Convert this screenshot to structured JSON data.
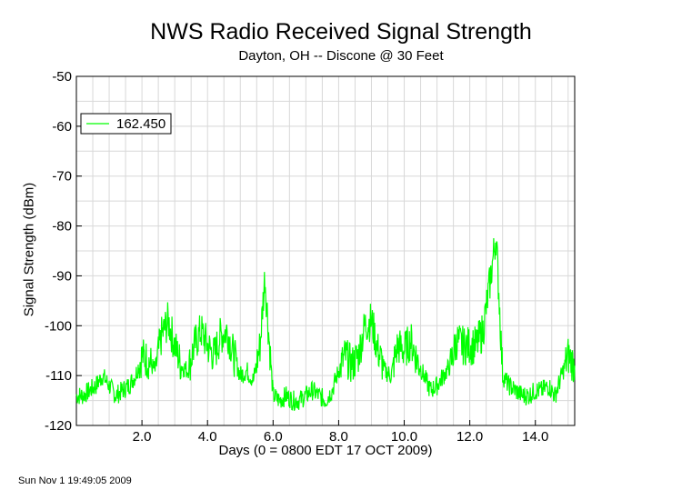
{
  "chart_data": {
    "type": "line",
    "title": "NWS Radio Received Signal Strength",
    "subtitle": "Dayton, OH -- Discone @ 30 Feet",
    "xlabel": "Days (0 = 0800 EDT 17 OCT 2009)",
    "ylabel": "Signal Strength (dBm)",
    "xlim": [
      0,
      15.2
    ],
    "ylim": [
      -120,
      -50
    ],
    "x_ticks": [
      "2.0",
      "4.0",
      "6.0",
      "8.0",
      "10.0",
      "12.0",
      "14.0"
    ],
    "y_ticks": [
      "-50",
      "-60",
      "-70",
      "-80",
      "-90",
      "-100",
      "-110",
      "-120"
    ],
    "grid": true,
    "legend_position": "top-left",
    "series": [
      {
        "name": "162.450",
        "color": "#00ff00",
        "x": [
          0.0,
          0.2,
          0.4,
          0.6,
          0.8,
          1.0,
          1.2,
          1.4,
          1.6,
          1.8,
          2.0,
          2.2,
          2.4,
          2.6,
          2.8,
          3.0,
          3.2,
          3.4,
          3.6,
          3.8,
          4.0,
          4.2,
          4.4,
          4.6,
          4.8,
          5.0,
          5.2,
          5.4,
          5.6,
          5.75,
          5.85,
          6.0,
          6.2,
          6.4,
          6.6,
          6.8,
          7.0,
          7.2,
          7.4,
          7.6,
          7.8,
          8.0,
          8.2,
          8.4,
          8.6,
          8.8,
          9.0,
          9.2,
          9.4,
          9.6,
          9.8,
          10.0,
          10.2,
          10.4,
          10.6,
          10.8,
          11.0,
          11.2,
          11.4,
          11.6,
          11.8,
          12.0,
          12.2,
          12.4,
          12.6,
          12.8,
          12.9,
          13.0,
          13.2,
          13.4,
          13.6,
          13.8,
          14.0,
          14.2,
          14.4,
          14.6,
          14.8,
          15.0,
          15.2
        ],
        "values": [
          -114,
          -114,
          -113,
          -112,
          -110,
          -112,
          -114,
          -113,
          -112,
          -110,
          -106,
          -107,
          -109,
          -102,
          -99,
          -104,
          -108,
          -109,
          -104,
          -101,
          -104,
          -106,
          -102,
          -101,
          -106,
          -110,
          -109,
          -111,
          -104,
          -90,
          -100,
          -114,
          -115,
          -114,
          -115,
          -115,
          -114,
          -113,
          -114,
          -115,
          -113,
          -109,
          -106,
          -108,
          -106,
          -100,
          -99,
          -105,
          -109,
          -110,
          -104,
          -105,
          -103,
          -107,
          -110,
          -113,
          -112,
          -110,
          -108,
          -103,
          -104,
          -104,
          -104,
          -101,
          -92,
          -82,
          -95,
          -110,
          -112,
          -113,
          -114,
          -114,
          -113,
          -113,
          -112,
          -114,
          -110,
          -106,
          -108
        ]
      }
    ]
  },
  "footer": "Sun Nov  1 19:49:05 2009"
}
